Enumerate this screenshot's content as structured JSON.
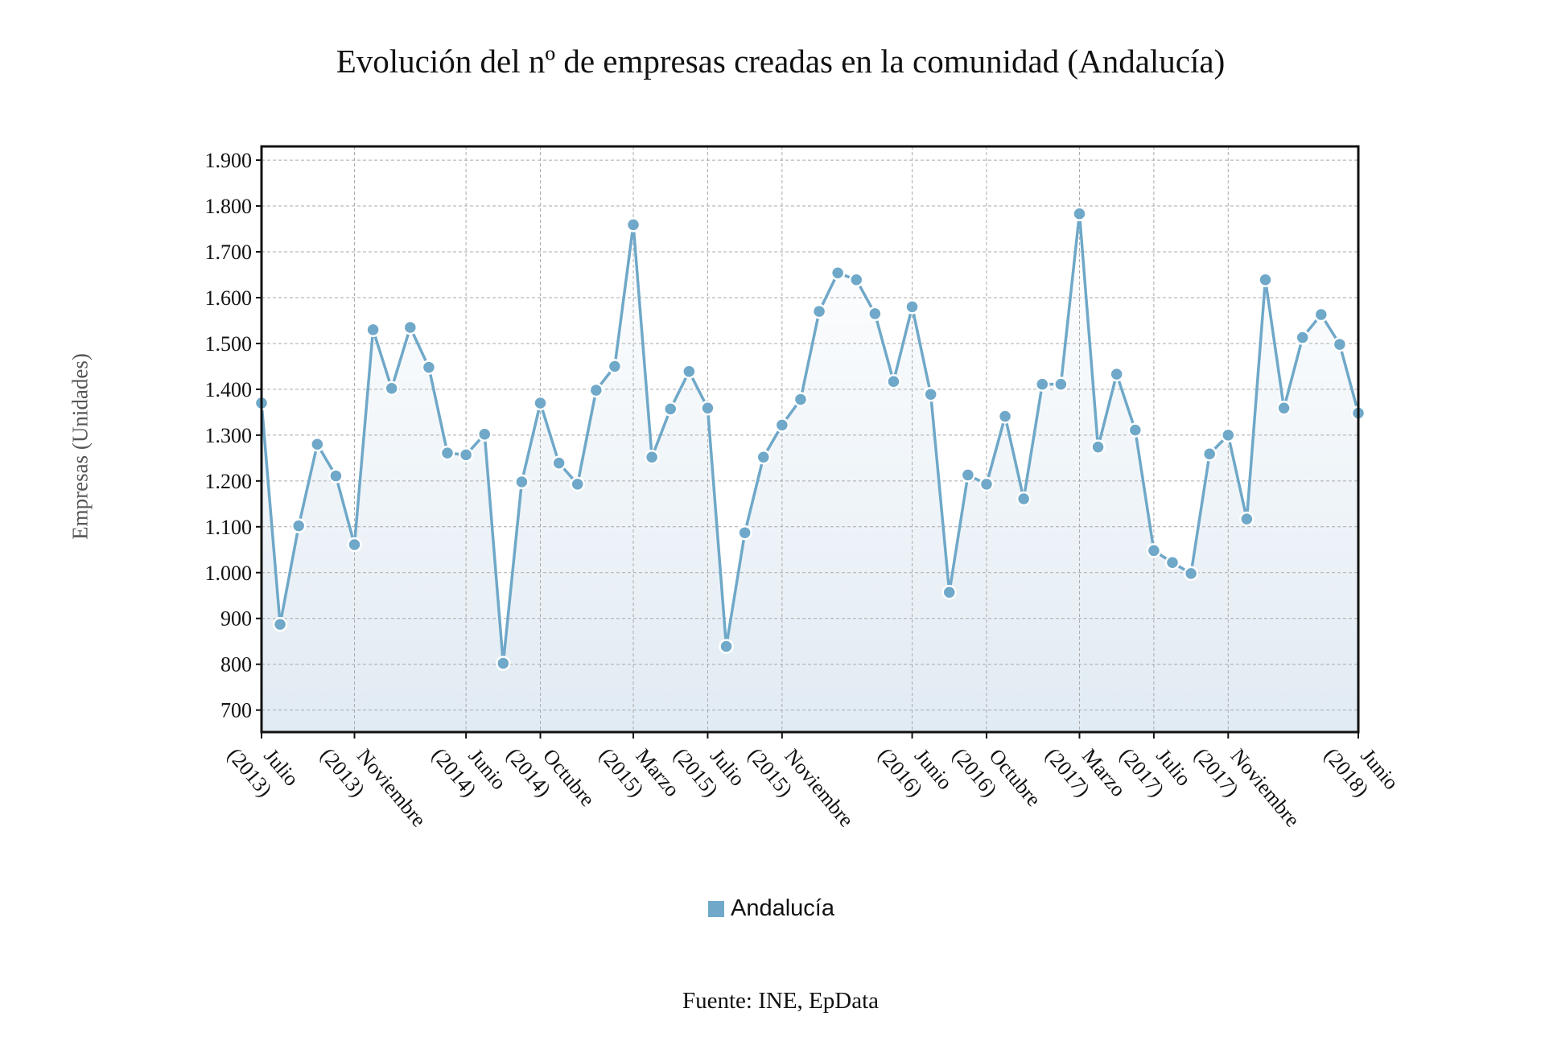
{
  "chart_data": {
    "type": "line",
    "title": "Evolución del nº de empresas creadas en la comunidad (Andalucía)",
    "ylabel": "Empresas (Unidades)",
    "xlabel": "",
    "ylim": [
      652,
      1930
    ],
    "yticks": [
      700,
      800,
      900,
      1000,
      1100,
      1200,
      1300,
      1400,
      1500,
      1600,
      1700,
      1800,
      1900
    ],
    "ytick_labels": [
      "700",
      "800",
      "900",
      "1.000",
      "1.100",
      "1.200",
      "1.300",
      "1.400",
      "1.500",
      "1.600",
      "1.700",
      "1.800",
      "1.900"
    ],
    "xtick_labels": [
      {
        "index": 0,
        "line1": "Julio",
        "line2": "(2013)"
      },
      {
        "index": 5,
        "line1": "Noviembre",
        "line2": "(2013)"
      },
      {
        "index": 11,
        "line1": "Junio",
        "line2": "(2014)"
      },
      {
        "index": 15,
        "line1": "Octubre",
        "line2": "(2014)"
      },
      {
        "index": 20,
        "line1": "Marzo",
        "line2": "(2015)"
      },
      {
        "index": 24,
        "line1": "Julio",
        "line2": "(2015)"
      },
      {
        "index": 28,
        "line1": "Noviembre",
        "line2": "(2015)"
      },
      {
        "index": 35,
        "line1": "Junio",
        "line2": "(2016)"
      },
      {
        "index": 39,
        "line1": "Octubre",
        "line2": "(2016)"
      },
      {
        "index": 44,
        "line1": "Marzo",
        "line2": "(2017)"
      },
      {
        "index": 48,
        "line1": "Julio",
        "line2": "(2017)"
      },
      {
        "index": 52,
        "line1": "Noviembre",
        "line2": "(2017)"
      },
      {
        "index": 59,
        "line1": "Junio",
        "line2": "(2018)"
      }
    ],
    "grid": true,
    "legend_position": "bottom",
    "series": [
      {
        "name": "Andalucía",
        "color": "#6fa8c8",
        "values": [
          1370,
          887,
          1102,
          1280,
          1211,
          1061,
          1530,
          1402,
          1535,
          1448,
          1261,
          1257,
          1302,
          802,
          1198,
          1370,
          1239,
          1193,
          1398,
          1450,
          1759,
          1252,
          1357,
          1439,
          1359,
          839,
          1087,
          1252,
          1322,
          1378,
          1570,
          1654,
          1639,
          1565,
          1417,
          1580,
          1389,
          957,
          1213,
          1193,
          1341,
          1161,
          1411,
          1411,
          1783,
          1274,
          1433,
          1311,
          1048,
          1022,
          998,
          1259,
          1300,
          1117,
          1639,
          1359,
          1513,
          1563,
          1498,
          1348
        ]
      }
    ]
  },
  "legend": {
    "label": "Andalucía"
  },
  "source": "Fuente: INE, EpData"
}
